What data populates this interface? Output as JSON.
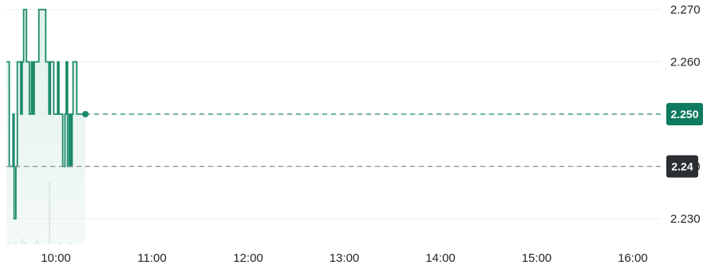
{
  "chart_data": {
    "type": "line",
    "title": "",
    "xlabel": "",
    "ylabel": "",
    "x_ticks": [
      "10:00",
      "11:00",
      "12:00",
      "13:00",
      "14:00",
      "15:00",
      "16:00"
    ],
    "y_ticks": [
      "2.230",
      "2.240",
      "2.250",
      "2.260",
      "2.270"
    ],
    "ylim": [
      2.226,
      2.271
    ],
    "grid": true,
    "axis_side": "right",
    "series": [
      {
        "x": [
          0.0,
          0.01,
          0.01,
          0.023,
          0.023,
          0.027,
          0.027,
          0.033,
          0.033,
          0.038,
          0.038,
          0.05,
          0.05,
          0.055,
          0.055,
          0.06,
          0.06,
          0.07,
          0.07,
          0.08,
          0.08,
          0.087,
          0.087,
          0.092,
          0.092,
          0.097,
          0.097,
          0.103,
          0.103,
          0.113,
          0.113,
          0.12,
          0.12,
          0.125,
          0.125,
          0.13,
          0.13,
          0.137,
          0.137,
          0.144,
          0.144,
          0.148,
          0.148,
          0.153,
          0.153,
          0.159,
          0.159,
          0.165,
          0.165,
          0.172,
          0.172,
          0.178,
          0.178,
          0.183,
          0.183,
          0.188,
          0.188,
          0.196,
          0.196,
          0.204,
          0.204,
          0.208,
          0.208,
          0.213,
          0.213,
          0.219,
          0.219,
          0.224,
          0.224,
          0.229,
          0.229,
          0.232,
          0.232,
          0.245,
          0.245,
          0.25,
          0.25,
          0.255,
          0.255,
          0.262,
          0.262,
          0.268,
          0.268,
          0.275
        ],
        "values": [
          2.26,
          2.26,
          2.24,
          2.24,
          2.25,
          2.25,
          2.23,
          2.23,
          2.24,
          2.24,
          2.26,
          2.26,
          2.25,
          2.25,
          2.26,
          2.26,
          2.27,
          2.27,
          2.26,
          2.26,
          2.25,
          2.25,
          2.26,
          2.26,
          2.25,
          2.25,
          2.26,
          2.26,
          2.26,
          2.26,
          2.27,
          2.27,
          2.27,
          2.27,
          2.27,
          2.27,
          2.27,
          2.27,
          2.26,
          2.26,
          2.26,
          2.26,
          2.25,
          2.25,
          2.26,
          2.26,
          2.26,
          2.26,
          2.25,
          2.25,
          2.25,
          2.25,
          2.26,
          2.26,
          2.25,
          2.25,
          2.25,
          2.25,
          2.24,
          2.24,
          2.25,
          2.25,
          2.26,
          2.26,
          2.24,
          2.24,
          2.25,
          2.25,
          2.24,
          2.24,
          2.25,
          2.25,
          2.26,
          2.26,
          2.25,
          2.25,
          2.25,
          2.25,
          2.25,
          2.25,
          2.25,
          2.25,
          2.25,
          2.25
        ]
      }
    ],
    "last_price_label": "2.250",
    "reference_price_label": "2.24",
    "colors": {
      "line": "#1b8a6b",
      "fill": "#dff0ea",
      "last_price_badge": "#0e7a5f",
      "reference_badge": "#2b2f33",
      "grid": "#ececec",
      "reference_dash": "#8a8f94"
    }
  }
}
